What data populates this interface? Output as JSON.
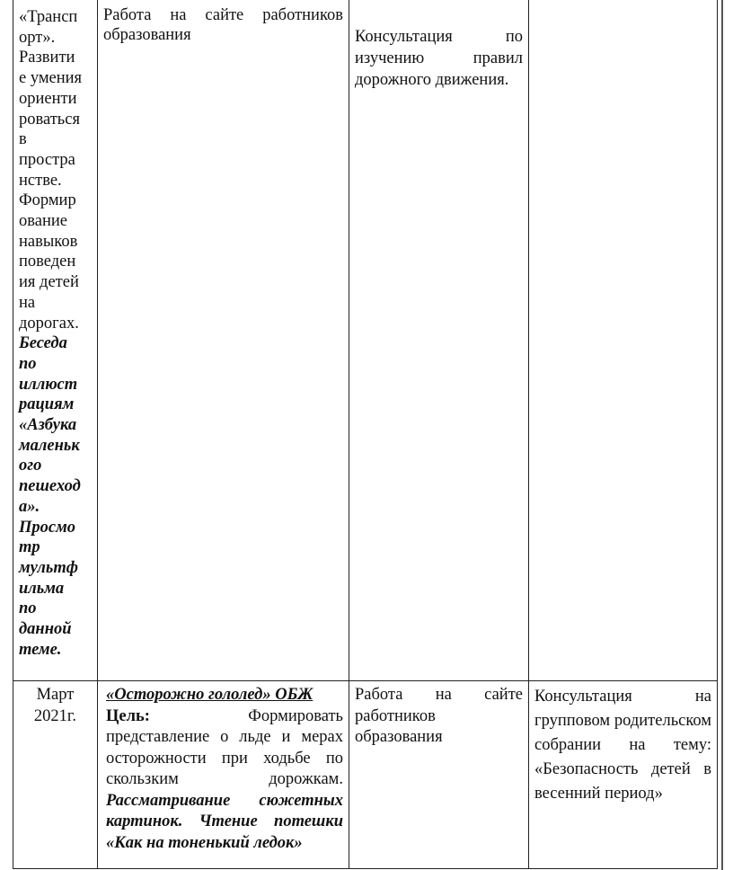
{
  "row1": {
    "topic_lines_regular": [
      "«Трансп",
      "орт».",
      "Развити",
      "е умения",
      "ориенти",
      "роваться",
      "в",
      "простра",
      "нстве.",
      "Формир",
      "ование",
      "навыков",
      "поведен",
      "ия детей",
      "на",
      "дорогах."
    ],
    "topic_lines_bold_italic": [
      "Беседа",
      "по",
      "иллюст",
      "рациям",
      "«Азбука",
      "маленьк",
      "ого",
      "пешеход",
      "а».",
      "Просмо",
      "тр",
      "мультф",
      "ильма",
      "по",
      "данной",
      "теме."
    ],
    "col2": "Работа на сайте работников образования",
    "col3": "Консультация по изучению правил дорожного движения.",
    "col4": ""
  },
  "row2": {
    "date": "Март 2021г.",
    "title": "«Осторожно гололед» ОБЖ",
    "goal_label": "Цель:",
    "goal_text": "Формировать представление о льде и мерах осторожности при  ходьбе по скользким дорожкам.",
    "activity": "Рассматривание сюжетных картинок. Чтение потешки «Как на тоненький ледок»",
    "col3": "Работа на сайте работников образования",
    "col4": "Консультация на групповом родительском собрании на тему: «Безопасность детей в весенний период»"
  }
}
